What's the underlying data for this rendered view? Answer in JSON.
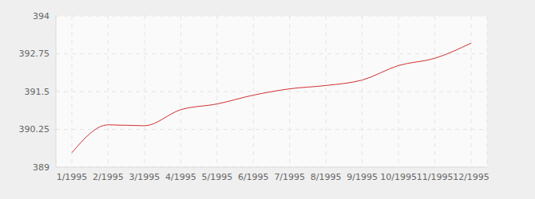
{
  "chart_data": {
    "type": "line",
    "categories": [
      "1/1995",
      "2/1995",
      "3/1995",
      "4/1995",
      "5/1995",
      "6/1995",
      "7/1995",
      "8/1995",
      "9/1995",
      "10/1995",
      "11/1995",
      "12/1995"
    ],
    "values": [
      389.48,
      390.4,
      390.37,
      390.9,
      391.09,
      391.38,
      391.59,
      391.7,
      391.88,
      392.36,
      392.6,
      393.1
    ],
    "color": "#d03030",
    "ylim": [
      389,
      394
    ],
    "yticks": [
      389,
      390.25,
      391.5,
      392.75,
      394
    ],
    "grid": true
  }
}
